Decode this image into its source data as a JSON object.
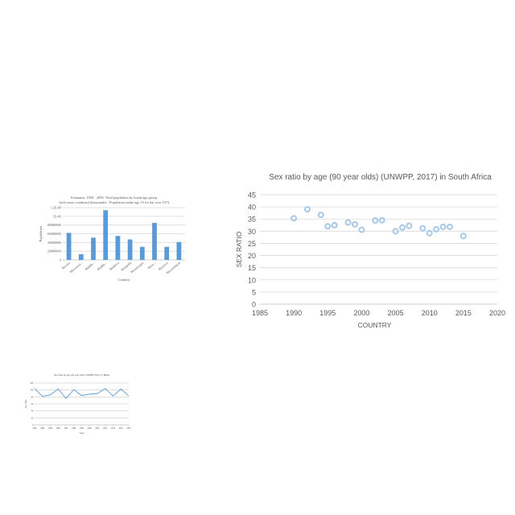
{
  "colors": {
    "point_stroke": "#a6c8e8",
    "bar_fill": "#5b9bd5",
    "line_stroke": "#5b9bd5",
    "grid": "#d9d9d9",
    "text": "#595959"
  },
  "chart_data": [
    {
      "type": "scatter",
      "title": "Sex ratio by age (90 year olds) (UNWPP, 2017) in South Africa",
      "xlabel": "COUNTRY",
      "ylabel": "SEX RATIO",
      "xlim": [
        1985,
        2020
      ],
      "ylim": [
        0,
        45
      ],
      "xticks": [
        "1985",
        "1990",
        "1995",
        "2000",
        "2005",
        "2010",
        "2015",
        "2020"
      ],
      "yticks": [
        "0",
        "5",
        "10",
        "15",
        "20",
        "25",
        "30",
        "35",
        "40",
        "45"
      ],
      "grid": true,
      "x": [
        1990,
        1992,
        1994,
        1995,
        1996,
        1998,
        1999,
        2000,
        2002,
        2003,
        2005,
        2006,
        2007,
        2009,
        2010,
        2011,
        2012,
        2013,
        2015
      ],
      "y": [
        35.3,
        39,
        36.7,
        32,
        32.5,
        33.6,
        32.8,
        30.6,
        34.4,
        34.5,
        30,
        31.5,
        32.2,
        31.2,
        29.2,
        30.8,
        31.8,
        31.8,
        28
      ]
    },
    {
      "type": "bar",
      "title": "Estimates, 1950 - 2050: Total population by broad age group, both sexes combined (thousands) - Population under age 15 for the year 1974",
      "xlabel": "Country",
      "ylabel": "Population",
      "ylim": [
        0,
        1200000000
      ],
      "yticks": [
        "0",
        "200000000",
        "400000000",
        "600000000",
        "800000000",
        "1E+09",
        "1.2E+09"
      ],
      "categories": [
        "Mexico",
        "Micronesi...",
        "Middle...",
        "Middle...",
        "Moldova",
        "Mongolia",
        "Montenegro",
        "More...",
        "Morocco",
        "Mozambique"
      ],
      "values": [
        620000000,
        130000000,
        510000000,
        1140000000,
        550000000,
        470000000,
        300000000,
        850000000,
        300000000,
        410000000
      ]
    },
    {
      "type": "line",
      "title": "Sex ratio by age (25 year olds) (UNWPP 2017) in Bahia",
      "xlabel": "Years",
      "ylabel": "Sex Ratio",
      "ylim": [
        0,
        120
      ],
      "yticks": [
        "0",
        "20",
        "40",
        "60",
        "80",
        "100",
        "120"
      ],
      "categories": [
        "1993",
        "1995",
        "1996",
        "1996",
        "1997",
        "1998",
        "1999",
        "2000",
        "2001",
        "2012",
        "2013",
        "2014",
        "2015"
      ],
      "values": [
        104,
        82,
        86,
        103,
        76,
        101,
        84,
        88,
        90,
        104,
        83,
        103,
        83
      ]
    }
  ]
}
